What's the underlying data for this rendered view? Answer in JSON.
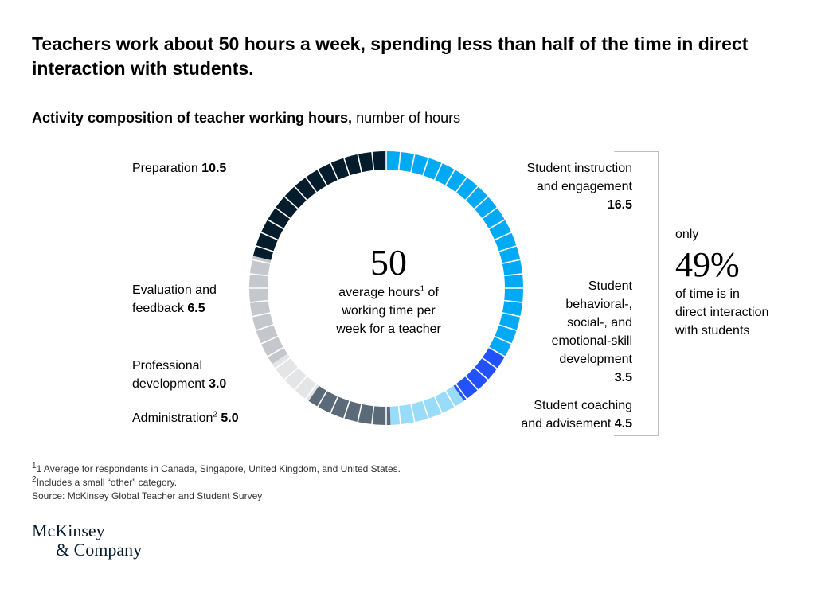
{
  "title": "Teachers work about 50 hours a week, spending less than half of the time in direct interaction with students.",
  "subtitle": {
    "bold": "Activity composition of teacher working hours,",
    "rest": "number of hours"
  },
  "center": {
    "value": "50",
    "line1": "average hours",
    "line1_sup": "1",
    "line1_after": " of",
    "line2": "working time per",
    "line3": "week for a teacher"
  },
  "callout": {
    "top": "only",
    "pct": "49%",
    "line1": "of time is in",
    "line2": "direct interaction",
    "line3": "with students"
  },
  "labels": {
    "preparation": {
      "text": "Preparation",
      "value": "10.5"
    },
    "evaluation": {
      "line1": "Evaluation and",
      "line2": "feedback",
      "value": "6.5"
    },
    "professional": {
      "line1": "Professional",
      "line2": "development",
      "value": "3.0"
    },
    "administration": {
      "text": "Administration",
      "sup": "2",
      "value": "5.0"
    },
    "instruction": {
      "line1": "Student instruction",
      "line2": "and engagement",
      "value": "16.5"
    },
    "behavioral": {
      "line1": "Student",
      "line2": "behavioral-,",
      "line3": "social-, and",
      "line4": "emotional-skill",
      "line5": "development",
      "value": "3.5"
    },
    "coaching": {
      "line1": "Student coaching",
      "line2": "and advisement",
      "value": "4.5"
    }
  },
  "footnotes": {
    "f1_sup": "1",
    "f1": "1 Average for respondents in Canada, Singapore, United Kingdom, and United States.",
    "f2_sup": "2",
    "f2": "Includes a small “other” category.",
    "source": "Source: McKinsey Global Teacher and Student Survey"
  },
  "logo": {
    "line1": "McKinsey",
    "line2": "& Company"
  },
  "chart_data": {
    "type": "pie",
    "total": 50,
    "title": "Activity composition of teacher working hours",
    "unit": "number of hours",
    "categories": [
      "Student instruction and engagement",
      "Student behavioral-, social-, and emotional-skill development",
      "Student coaching and advisement",
      "Administration",
      "Professional development",
      "Evaluation and feedback",
      "Preparation"
    ],
    "values": [
      16.5,
      3.5,
      4.5,
      5.0,
      3.0,
      6.5,
      10.5
    ],
    "colors": [
      "#00a9f4",
      "#2251ff",
      "#99dcf9",
      "#5a6a78",
      "#e3e5e7",
      "#c4c8cc",
      "#051c2c"
    ],
    "direct_interaction_share_percent": 49
  }
}
